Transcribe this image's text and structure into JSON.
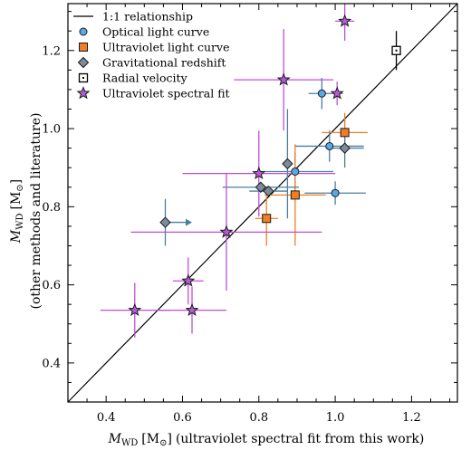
{
  "chart_data": {
    "type": "scatter",
    "xlabel": {
      "main": "M",
      "sub": "WD",
      "unit_open": "[M",
      "unit_sub": "⊙",
      "unit_close": "]",
      "suffix": "(ultraviolet spectral fit from this work)"
    },
    "ylabel": {
      "main": "M",
      "sub": "WD",
      "unit_open": "[M",
      "unit_sub": "⊙",
      "unit_close": "]",
      "line2": "(other methods and literature)"
    },
    "xlim": [
      0.3,
      1.32
    ],
    "ylim": [
      0.3,
      1.32
    ],
    "xticks": [
      "0.4",
      "0.6",
      "0.8",
      "1.0",
      "1.2"
    ],
    "yticks": [
      "0.4",
      "0.6",
      "0.8",
      "1.0",
      "1.2"
    ],
    "legend_position": "top-left",
    "one_to_one_line": {
      "name": "1:1 relationship",
      "color": "#000000"
    },
    "series": [
      {
        "name": "Optical light curve",
        "marker": "circle",
        "color": "#5aa9e6",
        "errcolor": "#4a7fa0",
        "points": [
          {
            "x": 0.965,
            "y": 1.09,
            "xerr": 0.035,
            "yerr": 0.04
          },
          {
            "x": 0.985,
            "y": 0.955,
            "xerr": 0.09,
            "yerr": 0.04
          },
          {
            "x": 0.895,
            "y": 0.89,
            "xerr": 0.1,
            "yerr": 0.05
          },
          {
            "x": 1.0,
            "y": 0.835,
            "xerr": 0.08,
            "yerr": 0.03
          }
        ]
      },
      {
        "name": "Ultraviolet light curve",
        "marker": "square",
        "color": "#f07e26",
        "errcolor": "#f07e26",
        "points": [
          {
            "x": 1.025,
            "y": 0.99,
            "xerr": 0.06,
            "yerr": 0.05
          },
          {
            "x": 0.895,
            "y": 0.83,
            "xerr": 0.08,
            "yerr": 0.13
          },
          {
            "x": 0.82,
            "y": 0.77,
            "xerr": 0.03,
            "yerr": 0.07
          }
        ]
      },
      {
        "name": "Gravitational redshift",
        "marker": "diamond",
        "color": "#7d8c9a",
        "errcolor": "#4a7fa0",
        "points": [
          {
            "x": 0.875,
            "y": 0.91,
            "xerr": 0.0,
            "yerr": 0.14
          },
          {
            "x": 1.025,
            "y": 0.95,
            "xerr": 0.05,
            "yerr": 0.05
          },
          {
            "x": 0.805,
            "y": 0.85,
            "xerr": 0.1,
            "yerr": 0.0
          },
          {
            "x": 0.825,
            "y": 0.84,
            "xerr": 0.05,
            "yerr": 0.0
          },
          {
            "x": 0.555,
            "y": 0.76,
            "xerr": 0.0,
            "yerr": 0.06,
            "arrow_right": 0.07
          }
        ]
      },
      {
        "name": "Radial velocity",
        "marker": "open-square",
        "color": "#ffffff",
        "errcolor": "#000000",
        "points": [
          {
            "x": 1.16,
            "y": 1.2,
            "xerr": 0.0,
            "yerr": 0.05
          }
        ]
      },
      {
        "name": "Ultraviolet spectral fit",
        "marker": "star",
        "color": "#b35cd6",
        "errcolor": "#c04fd8",
        "points": [
          {
            "x": 1.025,
            "y": 1.275,
            "xerr": 0.025,
            "yerr": 0.05
          },
          {
            "x": 0.865,
            "y": 1.125,
            "xerr": 0.13,
            "yerr": 0.13
          },
          {
            "x": 1.005,
            "y": 1.09,
            "xerr": 0.015,
            "yerr": 0.03
          },
          {
            "x": 0.8,
            "y": 0.885,
            "xerr": 0.2,
            "yerr": 0.11
          },
          {
            "x": 0.715,
            "y": 0.735,
            "xerr": 0.25,
            "yerr": 0.15
          },
          {
            "x": 0.615,
            "y": 0.61,
            "xerr": 0.04,
            "yerr": 0.06
          },
          {
            "x": 0.475,
            "y": 0.535,
            "xerr": 0.09,
            "yerr": 0.07
          },
          {
            "x": 0.625,
            "y": 0.535,
            "xerr": 0.09,
            "yerr": 0.06
          }
        ]
      }
    ]
  }
}
